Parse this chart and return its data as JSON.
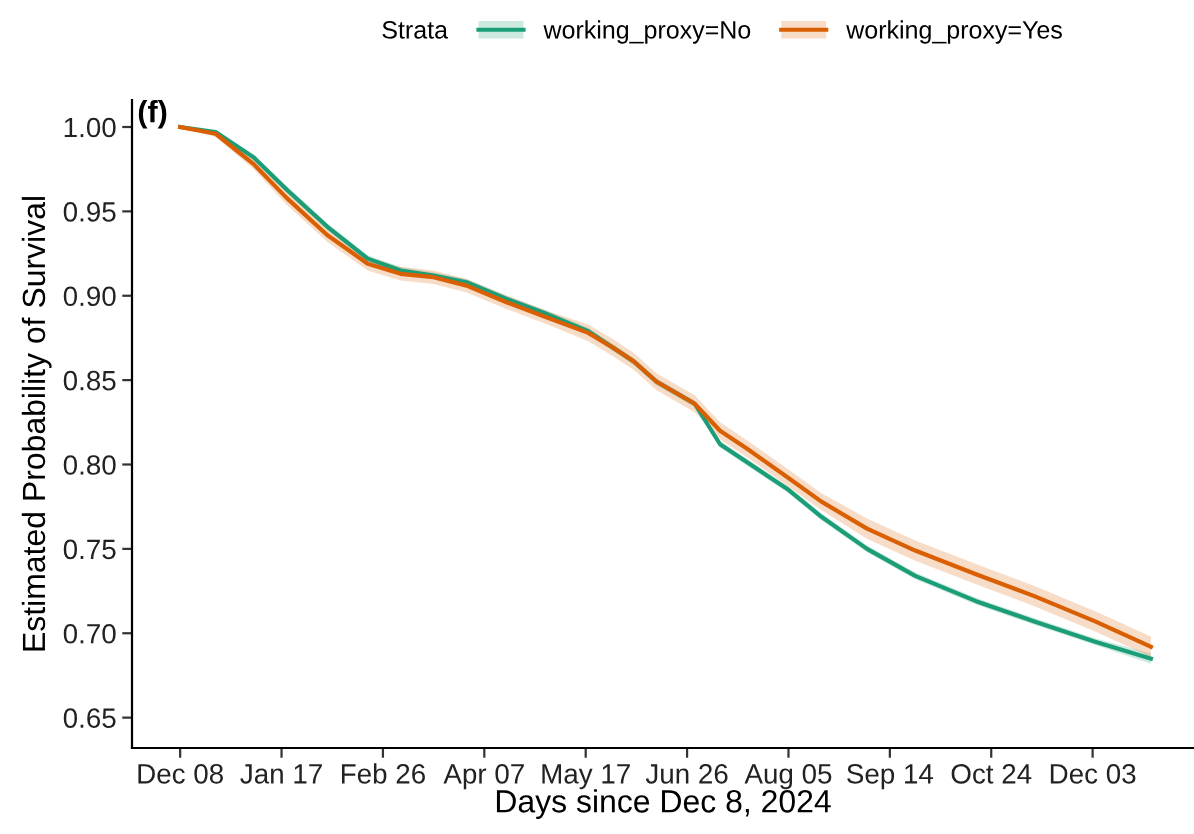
{
  "chart_data": {
    "type": "line",
    "title": "(f)",
    "xlabel": "Days since Dec 8, 2024",
    "ylabel": "Estimated Probability of Survival",
    "legend_title": "Strata",
    "legend": "top",
    "grid": false,
    "x": [
      "2024-12-08",
      "2024-12-22",
      "2025-01-06",
      "2025-01-19",
      "2025-02-04",
      "2025-02-20",
      "2025-03-05",
      "2025-03-18",
      "2025-03-31",
      "2025-04-16",
      "2025-05-02",
      "2025-05-18",
      "2025-05-28",
      "2025-06-05",
      "2025-06-14",
      "2025-06-29",
      "2025-07-09",
      "2025-07-20",
      "2025-08-05",
      "2025-08-18",
      "2025-09-05",
      "2025-09-24",
      "2025-10-18",
      "2025-11-10",
      "2025-12-04",
      "2025-12-26"
    ],
    "series": [
      {
        "name": "working_proxy=No",
        "color": "#1b9e77",
        "values": [
          1.0,
          0.997,
          0.982,
          0.963,
          0.941,
          0.922,
          0.915,
          0.912,
          0.908,
          0.898,
          0.889,
          0.879,
          0.869,
          0.861,
          0.849,
          0.836,
          0.812,
          0.801,
          0.785,
          0.769,
          0.75,
          0.734,
          0.719,
          0.707,
          0.695,
          0.685
        ],
        "lower": [
          1.0,
          0.996,
          0.98,
          0.961,
          0.939,
          0.92,
          0.913,
          0.91,
          0.906,
          0.896,
          0.887,
          0.877,
          0.867,
          0.859,
          0.847,
          0.834,
          0.81,
          0.799,
          0.783,
          0.767,
          0.748,
          0.732,
          0.717,
          0.705,
          0.693,
          0.682
        ],
        "upper": [
          1.0,
          0.998,
          0.984,
          0.965,
          0.943,
          0.924,
          0.917,
          0.914,
          0.91,
          0.9,
          0.891,
          0.881,
          0.871,
          0.863,
          0.851,
          0.838,
          0.814,
          0.803,
          0.787,
          0.771,
          0.752,
          0.736,
          0.721,
          0.709,
          0.697,
          0.688
        ]
      },
      {
        "name": "working_proxy=Yes",
        "color": "#d95f02",
        "values": [
          1.0,
          0.996,
          0.978,
          0.958,
          0.936,
          0.919,
          0.913,
          0.911,
          0.906,
          0.896,
          0.887,
          0.878,
          0.869,
          0.861,
          0.849,
          0.836,
          0.82,
          0.809,
          0.792,
          0.778,
          0.762,
          0.749,
          0.735,
          0.722,
          0.707,
          0.692
        ],
        "lower": [
          1.0,
          0.994,
          0.975,
          0.954,
          0.932,
          0.915,
          0.909,
          0.907,
          0.902,
          0.892,
          0.883,
          0.873,
          0.864,
          0.856,
          0.844,
          0.831,
          0.815,
          0.804,
          0.787,
          0.773,
          0.756,
          0.743,
          0.729,
          0.716,
          0.701,
          0.686
        ],
        "upper": [
          1.0,
          0.998,
          0.981,
          0.962,
          0.94,
          0.923,
          0.917,
          0.915,
          0.91,
          0.9,
          0.891,
          0.883,
          0.874,
          0.866,
          0.854,
          0.841,
          0.825,
          0.814,
          0.797,
          0.783,
          0.768,
          0.755,
          0.741,
          0.728,
          0.713,
          0.698
        ]
      }
    ],
    "xlim": [
      "2024-11-19",
      "2026-01-12"
    ],
    "ylim": [
      0.632,
      1.016
    ],
    "xticks": [
      {
        "value": "2024-12-08",
        "label": "Dec 08"
      },
      {
        "value": "2025-01-17",
        "label": "Jan 17"
      },
      {
        "value": "2025-02-26",
        "label": "Feb 26"
      },
      {
        "value": "2025-04-07",
        "label": "Apr 07"
      },
      {
        "value": "2025-05-17",
        "label": "May 17"
      },
      {
        "value": "2025-06-26",
        "label": "Jun 26"
      },
      {
        "value": "2025-08-05",
        "label": "Aug 05"
      },
      {
        "value": "2025-09-14",
        "label": "Sep 14"
      },
      {
        "value": "2025-10-24",
        "label": "Oct 24"
      },
      {
        "value": "2025-12-03",
        "label": "Dec 03"
      }
    ],
    "yticks": [
      {
        "value": 0.65,
        "label": "0.65"
      },
      {
        "value": 0.7,
        "label": "0.70"
      },
      {
        "value": 0.75,
        "label": "0.75"
      },
      {
        "value": 0.8,
        "label": "0.80"
      },
      {
        "value": 0.85,
        "label": "0.85"
      },
      {
        "value": 0.9,
        "label": "0.90"
      },
      {
        "value": 0.95,
        "label": "0.95"
      },
      {
        "value": 1.0,
        "label": "1.00"
      }
    ]
  }
}
